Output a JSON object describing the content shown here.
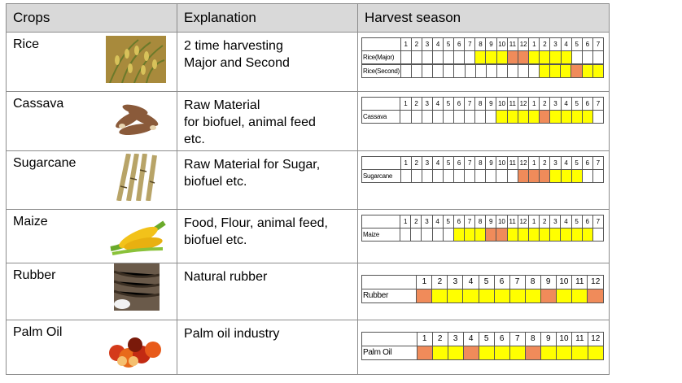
{
  "headers": {
    "crops": "Crops",
    "explanation": "Explanation",
    "season": "Harvest season"
  },
  "colors": {
    "yellow": "#ffff00",
    "orange": "#f08b5a",
    "header_bg": "#d9d9d9"
  },
  "months_short": [
    "1",
    "2",
    "3",
    "4",
    "5",
    "6",
    "7",
    "8",
    "9",
    "10",
    "11",
    "12",
    "1",
    "2",
    "3",
    "4",
    "5",
    "6",
    "7"
  ],
  "months_long": [
    "1",
    "2",
    "3",
    "4",
    "5",
    "6",
    "7",
    "8",
    "9",
    "10",
    "11",
    "12"
  ],
  "rows": [
    {
      "name": "Rice",
      "image_icon": "rice-plant-icon",
      "explanation": [
        "2 time harvesting",
        "Major and Second"
      ],
      "schedules": [
        {
          "label": "Rice(Major)",
          "cells": [
            "",
            "",
            "",
            "",
            "",
            "",
            "",
            "y",
            "y",
            "y",
            "o",
            "o",
            "y",
            "y",
            "y",
            "y",
            "",
            "",
            ""
          ]
        },
        {
          "label": "Rice(Second)",
          "cells": [
            "",
            "",
            "",
            "",
            "",
            "",
            "",
            "",
            "",
            "",
            "",
            "",
            "",
            "y",
            "y",
            "y",
            "o",
            "y",
            "y"
          ]
        }
      ]
    },
    {
      "name": "Cassava",
      "image_icon": "cassava-roots-icon",
      "explanation": [
        "Raw Material",
        "for biofuel, animal feed",
        "etc."
      ],
      "schedules": [
        {
          "label": "Cassava",
          "cells": [
            "",
            "",
            "",
            "",
            "",
            "",
            "",
            "",
            "",
            "y",
            "y",
            "y",
            "y",
            "o",
            "y",
            "y",
            "y",
            "y",
            ""
          ]
        }
      ]
    },
    {
      "name": "Sugarcane",
      "image_icon": "sugarcane-stalks-icon",
      "explanation": [
        "Raw Material for Sugar,",
        "biofuel etc."
      ],
      "schedules": [
        {
          "label": "Sugarcane",
          "cells": [
            "",
            "",
            "",
            "",
            "",
            "",
            "",
            "",
            "",
            "",
            "",
            "o",
            "o",
            "o",
            "y",
            "y",
            "y",
            "",
            ""
          ]
        }
      ]
    },
    {
      "name": "Maize",
      "image_icon": "corn-cob-icon",
      "explanation": [
        "Food, Flour,  animal feed,",
        "biofuel etc."
      ],
      "schedules": [
        {
          "label": "Maize",
          "cells": [
            "",
            "",
            "",
            "",
            "",
            "y",
            "y",
            "y",
            "o",
            "o",
            "y",
            "y",
            "y",
            "y",
            "y",
            "y",
            "y",
            "y",
            ""
          ]
        }
      ]
    },
    {
      "name": "Rubber",
      "image_icon": "rubber-tapping-icon",
      "explanation": [
        "Natural rubber"
      ],
      "schedules": [
        {
          "label": "Rubber",
          "long": true,
          "cells": [
            "o",
            "y",
            "y",
            "y",
            "y",
            "y",
            "y",
            "y",
            "o",
            "y",
            "y",
            "o"
          ]
        }
      ]
    },
    {
      "name": "Palm Oil",
      "image_icon": "palm-fruit-icon",
      "explanation": [
        "Palm oil industry"
      ],
      "schedules": [
        {
          "label": "Palm Oil",
          "long": true,
          "cells": [
            "o",
            "y",
            "y",
            "o",
            "y",
            "y",
            "y",
            "o",
            "y",
            "y",
            "y",
            "y"
          ]
        }
      ]
    }
  ]
}
